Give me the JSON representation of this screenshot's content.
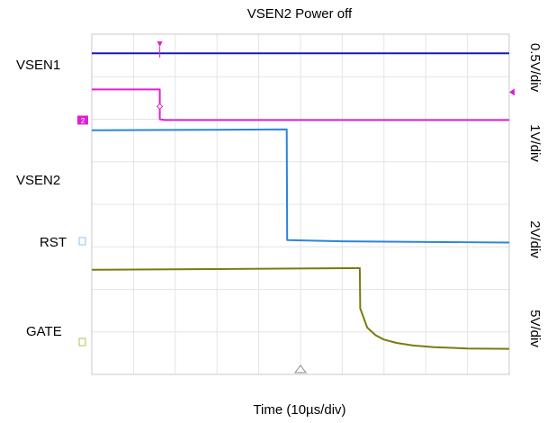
{
  "chart_data": {
    "type": "line",
    "title": "VSEN2 Power off",
    "xlabel": "Time (10µs/div)",
    "x_unit": "µs",
    "xlim": [
      0,
      100
    ],
    "ylim": [
      0,
      8
    ],
    "grid": true,
    "trigger_marker": "Δ",
    "scale_labels": [
      "0.5V/div",
      "1V/div",
      "2V/div",
      "5V/div"
    ],
    "series": [
      {
        "name": "VSEN1",
        "color": "#1a1ab8",
        "channel_tag": "",
        "points": [
          [
            0,
            7.55
          ],
          [
            100,
            7.55
          ]
        ]
      },
      {
        "name": "",
        "color": "#e020d0",
        "channel_tag": "2",
        "points": [
          [
            0,
            6.7
          ],
          [
            16.3,
            6.7
          ],
          [
            16.3,
            6.0
          ],
          [
            17.5,
            5.98
          ],
          [
            100,
            5.98
          ]
        ]
      },
      {
        "name": "VSEN2",
        "color": "#2a86da",
        "channel_tag": "",
        "points": [
          [
            0,
            5.74
          ],
          [
            46.7,
            5.76
          ],
          [
            46.8,
            3.16
          ],
          [
            60,
            3.13
          ],
          [
            100,
            3.1
          ]
        ]
      },
      {
        "name": "RST",
        "color": "#2a86da",
        "channel_tag": "",
        "points": []
      },
      {
        "name": "GATE",
        "color": "#7a7a10",
        "channel_tag": "",
        "points": [
          [
            0,
            2.46
          ],
          [
            64.2,
            2.5
          ],
          [
            64.3,
            1.55
          ],
          [
            66,
            1.1
          ],
          [
            68,
            0.92
          ],
          [
            70,
            0.82
          ],
          [
            73,
            0.74
          ],
          [
            77,
            0.68
          ],
          [
            82,
            0.64
          ],
          [
            90,
            0.61
          ],
          [
            100,
            0.6
          ]
        ]
      }
    ]
  },
  "icons": {
    "trigger_icon": "trigger-marker-icon",
    "trigger_position_icon": "trigger-position-icon",
    "channel_marker_icon": "channel-marker-icon"
  },
  "colors": {
    "grid": "#e4e4e4",
    "frame": "#c8c8c8"
  }
}
